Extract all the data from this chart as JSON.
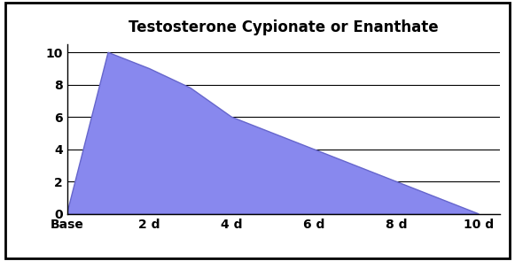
{
  "title": "Testosterone Cypionate or Enanthate",
  "fill_color": "#8888ee",
  "fill_alpha": 1.0,
  "edge_color": "#6666cc",
  "background_color": "#ffffff",
  "border_color": "#000000",
  "x_tick_positions": [
    0,
    2,
    4,
    6,
    8,
    10
  ],
  "x_tick_labels": [
    "Base",
    "2 d",
    "4 d",
    "6 d",
    "8 d",
    "10 d"
  ],
  "y_tick_positions": [
    0,
    2,
    4,
    6,
    8,
    10
  ],
  "y_tick_labels": [
    "0",
    "2",
    "4",
    "6",
    "8",
    "10"
  ],
  "xlim": [
    0,
    10.5
  ],
  "ylim": [
    0,
    10.5
  ],
  "polygon_x": [
    0,
    0.5,
    1.0,
    2.0,
    3.0,
    4.0,
    5.0,
    6.0,
    7.0,
    8.0,
    9.0,
    10.0,
    10.0,
    0.0
  ],
  "polygon_y": [
    0,
    5.0,
    10.0,
    9.0,
    7.8,
    6.0,
    5.0,
    4.0,
    3.0,
    2.0,
    1.0,
    0.0,
    0.0,
    0.0
  ],
  "title_fontsize": 12,
  "tick_fontsize": 10,
  "grid_color": "#000000",
  "grid_linewidth": 0.8,
  "outer_border": true
}
